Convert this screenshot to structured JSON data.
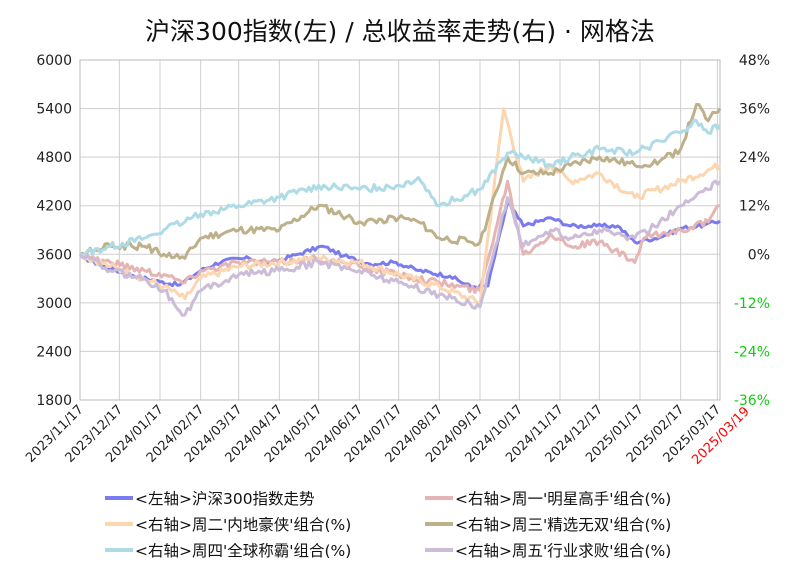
{
  "chart_data": {
    "type": "line",
    "title": "沪深300指数(左)  /  总收益率走势(右) · 网格法",
    "left_axis": {
      "min": 1800,
      "max": 6000,
      "ticks": [
        "6000",
        "5400",
        "4800",
        "4200",
        "3600",
        "3000",
        "2400",
        "1800"
      ]
    },
    "right_axis": {
      "min": -36,
      "max": 48,
      "unit": "%",
      "ticks": [
        "48%",
        "36%",
        "24%",
        "12%",
        "0%",
        "-12%",
        "-24%",
        "-36%"
      ]
    },
    "x_ticks": [
      "2023/11/17",
      "2023/12/17",
      "2024/01/17",
      "2024/02/17",
      "2024/03/17",
      "2024/04/17",
      "2024/05/17",
      "2024/06/17",
      "2024/07/17",
      "2024/08/17",
      "2024/09/17",
      "2024/10/17",
      "2024/11/17",
      "2024/12/17",
      "2025/01/17",
      "2025/02/17",
      "2025/03/17"
    ],
    "x_end_label": "2025/03/19",
    "grid": true,
    "legend_position": "bottom",
    "series": [
      {
        "name": "<左轴>沪深300指数走势",
        "axis": "left",
        "color": "#7b7bf0",
        "points": [
          [
            "2023-11-17",
            3580
          ],
          [
            "2023-12-05",
            3450
          ],
          [
            "2023-12-27",
            3340
          ],
          [
            "2024-01-17",
            3260
          ],
          [
            "2024-02-01",
            3220
          ],
          [
            "2024-02-17",
            3400
          ],
          [
            "2024-03-05",
            3520
          ],
          [
            "2024-03-25",
            3550
          ],
          [
            "2024-04-10",
            3490
          ],
          [
            "2024-05-01",
            3600
          ],
          [
            "2024-05-20",
            3700
          ],
          [
            "2024-06-05",
            3580
          ],
          [
            "2024-06-25",
            3480
          ],
          [
            "2024-07-15",
            3500
          ],
          [
            "2024-08-01",
            3400
          ],
          [
            "2024-08-25",
            3330
          ],
          [
            "2024-09-10",
            3200
          ],
          [
            "2024-09-23",
            3210
          ],
          [
            "2024-10-08",
            4250
          ],
          [
            "2024-10-20",
            3950
          ],
          [
            "2024-11-10",
            4050
          ],
          [
            "2024-11-25",
            3950
          ],
          [
            "2024-12-15",
            3950
          ],
          [
            "2024-12-31",
            3950
          ],
          [
            "2025-01-13",
            3750
          ],
          [
            "2025-02-01",
            3810
          ],
          [
            "2025-02-17",
            3920
          ],
          [
            "2025-03-07",
            3960
          ],
          [
            "2025-03-19",
            4010
          ]
        ]
      },
      {
        "name": "<右轴>周一'明星高手'组合(%)",
        "axis": "right",
        "color": "#e5b4b4",
        "points": [
          [
            "2023-11-17",
            0
          ],
          [
            "2023-12-10",
            -2
          ],
          [
            "2024-01-05",
            -4
          ],
          [
            "2024-01-20",
            -5
          ],
          [
            "2024-02-05",
            -7
          ],
          [
            "2024-02-17",
            -4
          ],
          [
            "2024-03-17",
            -2
          ],
          [
            "2024-04-17",
            -2
          ],
          [
            "2024-05-17",
            -1
          ],
          [
            "2024-06-17",
            -3
          ],
          [
            "2024-07-17",
            -5
          ],
          [
            "2024-08-17",
            -7
          ],
          [
            "2024-09-17",
            -9
          ],
          [
            "2024-10-08",
            18
          ],
          [
            "2024-10-20",
            0
          ],
          [
            "2024-11-10",
            5
          ],
          [
            "2024-11-25",
            2
          ],
          [
            "2024-12-17",
            3
          ],
          [
            "2025-01-13",
            -2
          ],
          [
            "2025-01-20",
            4
          ],
          [
            "2025-02-17",
            6
          ],
          [
            "2025-03-10",
            8
          ],
          [
            "2025-03-19",
            12
          ]
        ]
      },
      {
        "name": "<右轴>周二'内地豪侠'组合(%)",
        "axis": "right",
        "color": "#fcd6b0",
        "points": [
          [
            "2023-11-17",
            0
          ],
          [
            "2023-12-10",
            -3
          ],
          [
            "2024-01-05",
            -6
          ],
          [
            "2024-01-20",
            -8
          ],
          [
            "2024-02-05",
            -11
          ],
          [
            "2024-02-17",
            -6
          ],
          [
            "2024-03-17",
            -3
          ],
          [
            "2024-04-17",
            -2
          ],
          [
            "2024-05-17",
            -1
          ],
          [
            "2024-06-17",
            -2
          ],
          [
            "2024-07-17",
            -5
          ],
          [
            "2024-08-17",
            -8
          ],
          [
            "2024-09-17",
            -12
          ],
          [
            "2024-10-05",
            36
          ],
          [
            "2024-10-20",
            18
          ],
          [
            "2024-11-10",
            22
          ],
          [
            "2024-11-25",
            18
          ],
          [
            "2024-12-17",
            20
          ],
          [
            "2025-01-13",
            14
          ],
          [
            "2025-02-17",
            18
          ],
          [
            "2025-03-19",
            22
          ]
        ]
      },
      {
        "name": "<右轴>周三'精选无双'组合(%)",
        "axis": "right",
        "color": "#bdb08a",
        "points": [
          [
            "2023-11-17",
            0
          ],
          [
            "2023-12-10",
            2
          ],
          [
            "2024-01-05",
            2
          ],
          [
            "2024-01-20",
            0
          ],
          [
            "2024-02-05",
            -1
          ],
          [
            "2024-02-17",
            4
          ],
          [
            "2024-03-17",
            6
          ],
          [
            "2024-04-17",
            6
          ],
          [
            "2024-05-17",
            12
          ],
          [
            "2024-06-17",
            8
          ],
          [
            "2024-07-17",
            9
          ],
          [
            "2024-08-01",
            8
          ],
          [
            "2024-08-17",
            4
          ],
          [
            "2024-09-17",
            3
          ],
          [
            "2024-10-08",
            24
          ],
          [
            "2024-10-20",
            20
          ],
          [
            "2024-11-10",
            20
          ],
          [
            "2024-11-25",
            22
          ],
          [
            "2024-12-17",
            24
          ],
          [
            "2025-01-13",
            22
          ],
          [
            "2025-02-01",
            23
          ],
          [
            "2025-02-17",
            26
          ],
          [
            "2025-03-01",
            37
          ],
          [
            "2025-03-10",
            33
          ],
          [
            "2025-03-19",
            36
          ]
        ]
      },
      {
        "name": "<右轴>周四'全球称霸'组合(%)",
        "axis": "right",
        "color": "#aedbe6",
        "points": [
          [
            "2023-11-17",
            0
          ],
          [
            "2023-12-10",
            2
          ],
          [
            "2024-01-05",
            4
          ],
          [
            "2024-01-20",
            6
          ],
          [
            "2024-02-05",
            8
          ],
          [
            "2024-02-17",
            10
          ],
          [
            "2024-03-17",
            12
          ],
          [
            "2024-04-17",
            14
          ],
          [
            "2024-05-17",
            17
          ],
          [
            "2024-06-17",
            16
          ],
          [
            "2024-07-17",
            17
          ],
          [
            "2024-08-01",
            19
          ],
          [
            "2024-08-17",
            12
          ],
          [
            "2024-09-17",
            16
          ],
          [
            "2024-10-08",
            25
          ],
          [
            "2024-10-20",
            24
          ],
          [
            "2024-11-10",
            22
          ],
          [
            "2024-11-25",
            24
          ],
          [
            "2024-12-17",
            26
          ],
          [
            "2025-01-13",
            25
          ],
          [
            "2025-02-01",
            28
          ],
          [
            "2025-02-17",
            30
          ],
          [
            "2025-03-01",
            33
          ],
          [
            "2025-03-10",
            30
          ],
          [
            "2025-03-19",
            32
          ]
        ]
      },
      {
        "name": "<右轴>周五'行业求败'组合(%)",
        "axis": "right",
        "color": "#cbbcd8",
        "points": [
          [
            "2023-11-17",
            0
          ],
          [
            "2023-12-10",
            -4
          ],
          [
            "2024-01-05",
            -6
          ],
          [
            "2024-01-20",
            -9
          ],
          [
            "2024-02-05",
            -15
          ],
          [
            "2024-02-17",
            -9
          ],
          [
            "2024-03-17",
            -5
          ],
          [
            "2024-04-17",
            -4
          ],
          [
            "2024-05-17",
            -2
          ],
          [
            "2024-06-17",
            -4
          ],
          [
            "2024-07-17",
            -7
          ],
          [
            "2024-08-17",
            -10
          ],
          [
            "2024-09-17",
            -13
          ],
          [
            "2024-10-08",
            14
          ],
          [
            "2024-10-20",
            2
          ],
          [
            "2024-11-10",
            6
          ],
          [
            "2024-11-25",
            4
          ],
          [
            "2024-12-17",
            6
          ],
          [
            "2025-01-13",
            4
          ],
          [
            "2025-02-01",
            8
          ],
          [
            "2025-02-17",
            12
          ],
          [
            "2025-03-10",
            16
          ],
          [
            "2025-03-19",
            18
          ]
        ]
      }
    ],
    "legend": [
      {
        "label": "<左轴>沪深300指数走势",
        "color": "#7b7bf0"
      },
      {
        "label": "<右轴>周一'明星高手'组合(%)",
        "color": "#e5b4b4"
      },
      {
        "label": "<右轴>周二'内地豪侠'组合(%)",
        "color": "#fcd6b0"
      },
      {
        "label": "<右轴>周三'精选无双'组合(%)",
        "color": "#bdb08a"
      },
      {
        "label": "<右轴>周四'全球称霸'组合(%)",
        "color": "#aedbe6"
      },
      {
        "label": "<右轴>周五'行业求败'组合(%)",
        "color": "#cbbcd8"
      }
    ],
    "right_negative_tick_color": "#11cc11",
    "end_label_color": "#ff0000"
  }
}
